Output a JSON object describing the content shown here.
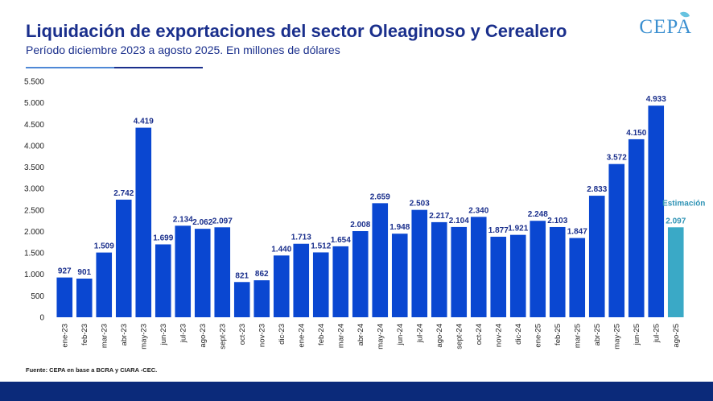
{
  "header": {
    "title": "Liquidación de exportaciones del sector Oleaginoso y Cerealero",
    "subtitle": "Período diciembre 2023 a agosto 2025. En millones de dólares",
    "logo_text": "CEPA"
  },
  "footer": {
    "source": "Fuente: CEPA en base a BCRA y CIARA -CEC."
  },
  "colors": {
    "bar": "#0a47d1",
    "estimate_bar": "#3aa9c6",
    "estimate_label": "#2f93b5",
    "label": "#1a2f8c",
    "axis_text": "#222222",
    "footer_band": "#0b2a7a"
  },
  "chart_data": {
    "type": "bar",
    "title": "Liquidación de exportaciones del sector Oleaginoso y Cerealero",
    "ylabel": "",
    "xlabel": "",
    "ylim": [
      0,
      5500
    ],
    "yticks": [
      0,
      500,
      1000,
      1500,
      2000,
      2500,
      3000,
      3500,
      4000,
      4500,
      5000,
      5500
    ],
    "ytick_labels": [
      "0",
      "500",
      "1.000",
      "1.500",
      "2.000",
      "2.500",
      "3.000",
      "3.500",
      "4.000",
      "4.500",
      "5.000",
      "5.500"
    ],
    "grid": false,
    "categories": [
      "ene-23",
      "feb-23",
      "mar-23",
      "abr-23",
      "may-23",
      "jun-23",
      "jul-23",
      "ago-23",
      "sept-23",
      "oct-23",
      "nov-23",
      "dic-23",
      "ene-24",
      "feb-24",
      "mar-24",
      "abr-24",
      "may-24",
      "jun-24",
      "jul-24",
      "ago-24",
      "sept-24",
      "oct-24",
      "nov-24",
      "dic-24",
      "ene-25",
      "feb-25",
      "mar-25",
      "abr-25",
      "may-25",
      "jun-25",
      "jul-25",
      "ago-25"
    ],
    "values": [
      927,
      901,
      1509,
      2742,
      4419,
      1699,
      2134,
      2062,
      2097,
      821,
      862,
      1440,
      1713,
      1512,
      1654,
      2008,
      2659,
      1948,
      2503,
      2217,
      2104,
      2340,
      1877,
      1921,
      2248,
      2103,
      1847,
      2833,
      3572,
      4150,
      4933,
      2097
    ],
    "value_labels": [
      "927",
      "901",
      "1.509",
      "2.742",
      "4.419",
      "1.699",
      "2.134",
      "2.062",
      "2.097",
      "821",
      "862",
      "1.440",
      "1.713",
      "1.512",
      "1.654",
      "2.008",
      "2.659",
      "1.948",
      "2.503",
      "2.217",
      "2.104",
      "2.340",
      "1.877",
      "1.921",
      "2.248",
      "2.103",
      "1.847",
      "2.833",
      "3.572",
      "4.150",
      "4.933",
      "2.097"
    ],
    "estimate_index": 31,
    "estimate_label": "Estimación"
  }
}
